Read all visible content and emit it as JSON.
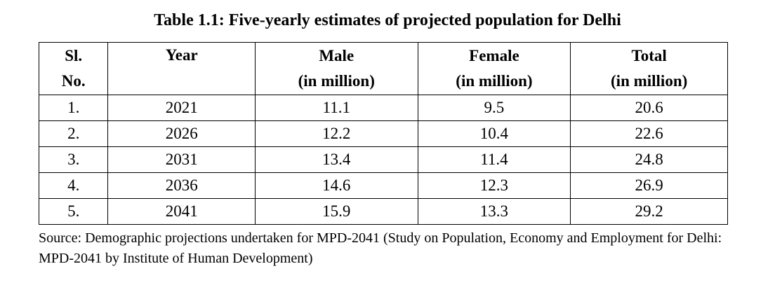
{
  "title": "Table 1.1: Five-yearly estimates of projected population for Delhi",
  "table": {
    "headers": {
      "sl_line1": "Sl.",
      "sl_line2": "No.",
      "year": "Year",
      "male_line1": "Male",
      "male_line2": "(in million)",
      "female_line1": "Female",
      "female_line2": "(in million)",
      "total_line1": "Total",
      "total_line2": "(in million)"
    },
    "rows": [
      {
        "sl": "1.",
        "year": "2021",
        "male": "11.1",
        "female": "9.5",
        "total": "20.6"
      },
      {
        "sl": "2.",
        "year": "2026",
        "male": "12.2",
        "female": "10.4",
        "total": "22.6"
      },
      {
        "sl": "3.",
        "year": "2031",
        "male": "13.4",
        "female": "11.4",
        "total": "24.8"
      },
      {
        "sl": "4.",
        "year": "2036",
        "male": "14.6",
        "female": "12.3",
        "total": "26.9"
      },
      {
        "sl": "5.",
        "year": "2041",
        "male": "15.9",
        "female": "13.3",
        "total": "29.2"
      }
    ]
  },
  "source": "Source: Demographic projections undertaken for MPD-2041 (Study on Population, Economy and Employment for Delhi: MPD-2041 by Institute of Human Development)"
}
